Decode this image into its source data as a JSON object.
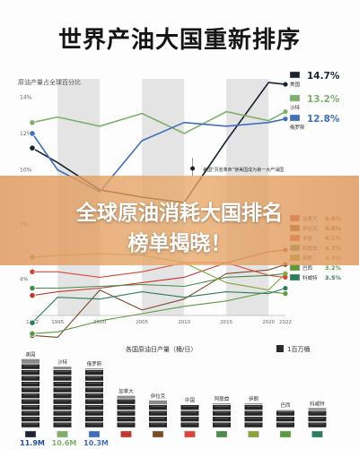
{
  "page": {
    "title": "世界产油大国重新排序",
    "headline_line1": "全球原油消耗大国排名",
    "headline_line2": "榜单揭晓！"
  },
  "colors": {
    "us": "#1a2230",
    "saudi": "#7fb06a",
    "russia": "#3f6fb8",
    "bg_band": "#e4e4e4",
    "banner": "#e0995c"
  },
  "chart_data": [
    {
      "type": "line",
      "title": "原油产量占全球百分比",
      "x": [
        1992,
        1995,
        2000,
        2005,
        2010,
        2015,
        2020,
        2022
      ],
      "tick_labels": [
        "1992",
        "1995",
        "2000",
        "2005",
        "2010",
        "2015",
        "2020",
        "2022"
      ],
      "y_tick_labels": [
        "14%",
        "12%",
        "10%",
        "7%",
        "4%"
      ],
      "ylim": [
        2,
        15
      ],
      "annotation": "美国“页岩革命”使美国成为第一大产油国",
      "series": [
        {
          "name": "美国",
          "value_label": "14.7%",
          "color": "#1a2230",
          "values": [
            11.2,
            10.4,
            8.9,
            8.5,
            8.2,
            11.6,
            14.8,
            14.7
          ]
        },
        {
          "name": "沙特",
          "value_label": "13.2%",
          "color": "#7fb06a",
          "values": [
            12.6,
            12.9,
            12.4,
            13.1,
            12.0,
            13.2,
            12.7,
            13.2
          ]
        },
        {
          "name": "俄罗斯",
          "value_label": "12.8%",
          "color": "#3f6fb8",
          "values": [
            12.0,
            10.0,
            8.8,
            11.6,
            12.6,
            12.4,
            12.6,
            12.8
          ]
        },
        {
          "name": "加拿大",
          "value_label": "5.6%",
          "color": "#c0392b",
          "values": [
            3.1,
            3.3,
            3.5,
            3.8,
            4.1,
            4.9,
            5.5,
            5.6
          ]
        },
        {
          "name": "伊拉克",
          "value_label": "4.8%",
          "color": "#7a4a2a",
          "values": [
            0.9,
            0.8,
            3.4,
            2.3,
            2.9,
            4.3,
            4.5,
            4.8
          ]
        },
        {
          "name": "中国",
          "value_label": "4.1%",
          "color": "#d8483a",
          "values": [
            4.4,
            4.4,
            4.1,
            4.4,
            4.9,
            4.9,
            4.2,
            4.1
          ]
        },
        {
          "name": "阿联酋",
          "value_label": "4.3%",
          "color": "#4a8a4a",
          "values": [
            3.5,
            3.5,
            3.6,
            3.7,
            3.6,
            4.1,
            4.2,
            4.3
          ]
        },
        {
          "name": "伊朗",
          "value_label": "4.3%",
          "color": "#8aa23a",
          "values": [
            5.2,
            5.3,
            5.4,
            5.3,
            4.9,
            3.8,
            3.4,
            4.3
          ]
        },
        {
          "name": "巴西",
          "value_label": "3.2%",
          "color": "#5b9a3f",
          "values": [
            1.0,
            1.1,
            1.7,
            2.1,
            2.5,
            2.8,
            3.3,
            3.2
          ]
        },
        {
          "name": "科威特",
          "value_label": "3.5%",
          "color": "#2e7d5a",
          "values": [
            1.6,
            3.0,
            2.9,
            3.3,
            3.0,
            3.3,
            3.2,
            3.5
          ]
        }
      ]
    },
    {
      "type": "bar",
      "title": "各国原油日产量（桶/日）",
      "legend": "1百万桶",
      "categories": [
        "美国",
        "沙特",
        "俄罗斯",
        "加拿大",
        "伊拉克",
        "中国",
        "阿联酋",
        "伊朗",
        "巴西",
        "科威特"
      ],
      "values": [
        11.9,
        10.6,
        10.3,
        5.6,
        4.8,
        4.1,
        4.3,
        4.3,
        3.2,
        3.5
      ],
      "value_labels": [
        "11.9M",
        "10.6M",
        "10.3M",
        "",
        "",
        "",
        "",
        "",
        "",
        ""
      ]
    }
  ]
}
